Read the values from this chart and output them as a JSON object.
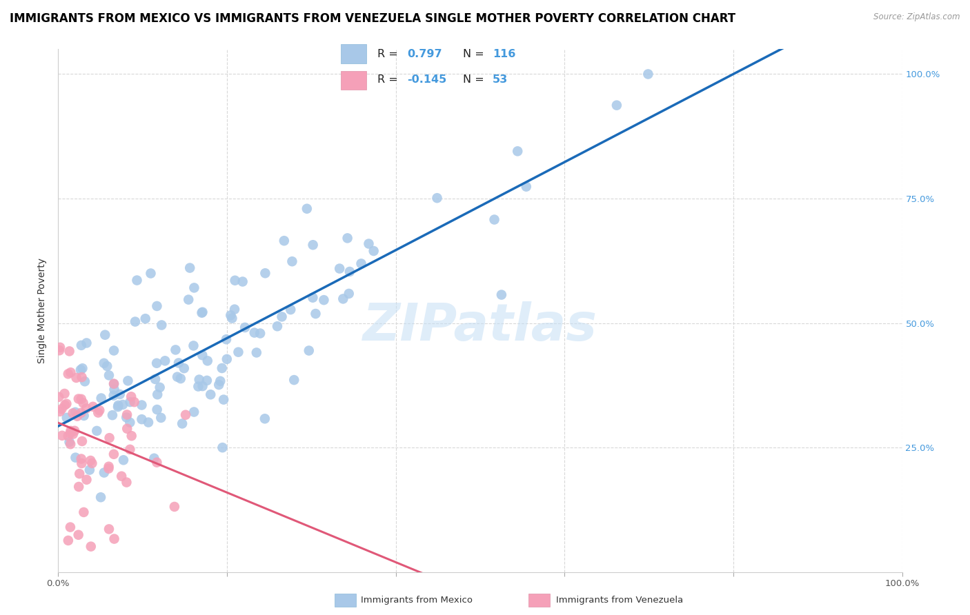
{
  "title": "IMMIGRANTS FROM MEXICO VS IMMIGRANTS FROM VENEZUELA SINGLE MOTHER POVERTY CORRELATION CHART",
  "source": "Source: ZipAtlas.com",
  "ylabel": "Single Mother Poverty",
  "watermark": "ZIPatlas",
  "mexico_R": 0.797,
  "mexico_N": 116,
  "venezuela_R": -0.145,
  "venezuela_N": 53,
  "mexico_color": "#a8c8e8",
  "venezuela_color": "#f5a0b8",
  "mexico_line_color": "#1a6ab8",
  "venezuela_line_color": "#e05878",
  "venezuela_dashed_color": "#d0a0b0",
  "background_color": "#ffffff",
  "grid_color": "#d8d8d8",
  "right_axis_color": "#4499dd",
  "title_fontsize": 12,
  "axis_label_fontsize": 10
}
